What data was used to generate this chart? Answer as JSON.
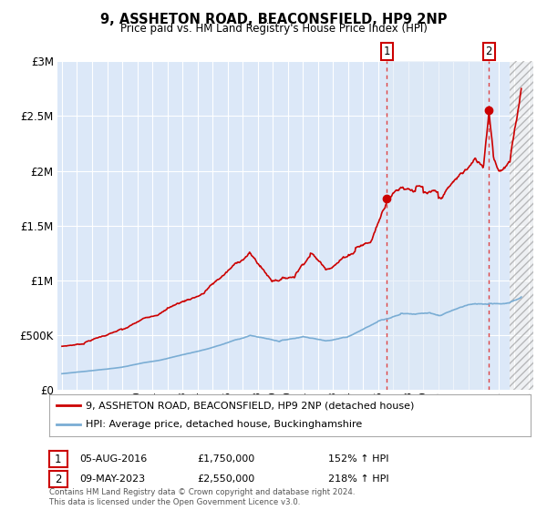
{
  "title": "9, ASSHETON ROAD, BEACONSFIELD, HP9 2NP",
  "subtitle": "Price paid vs. HM Land Registry's House Price Index (HPI)",
  "red_label": "9, ASSHETON ROAD, BEACONSFIELD, HP9 2NP (detached house)",
  "blue_label": "HPI: Average price, detached house, Buckinghamshire",
  "annotation1_date": "05-AUG-2016",
  "annotation1_price": "£1,750,000",
  "annotation1_hpi": "152% ↑ HPI",
  "annotation2_date": "09-MAY-2023",
  "annotation2_price": "£2,550,000",
  "annotation2_hpi": "218% ↑ HPI",
  "footer": "Contains HM Land Registry data © Crown copyright and database right 2024.\nThis data is licensed under the Open Government Licence v3.0.",
  "ylim": [
    0,
    3000000
  ],
  "yticks": [
    0,
    500000,
    1000000,
    1500000,
    2000000,
    2500000,
    3000000
  ],
  "ytick_labels": [
    "£0",
    "£500K",
    "£1M",
    "£1.5M",
    "£2M",
    "£2.5M",
    "£3M"
  ],
  "plot_bg_color": "#dce8f8",
  "plot_bg_color2": "#e8eef8",
  "hatch_bg_color": "#d8d8d8",
  "red_color": "#cc0000",
  "blue_color": "#7aadd4",
  "vline_color": "#dd4444",
  "point1_x": 2016.58,
  "point1_y": 1750000,
  "point2_x": 2023.35,
  "point2_y": 2550000,
  "vline1_x": 2016.58,
  "vline2_x": 2023.35,
  "hatch_start": 2024.75,
  "xmin": 1994.7,
  "xmax": 2026.3
}
